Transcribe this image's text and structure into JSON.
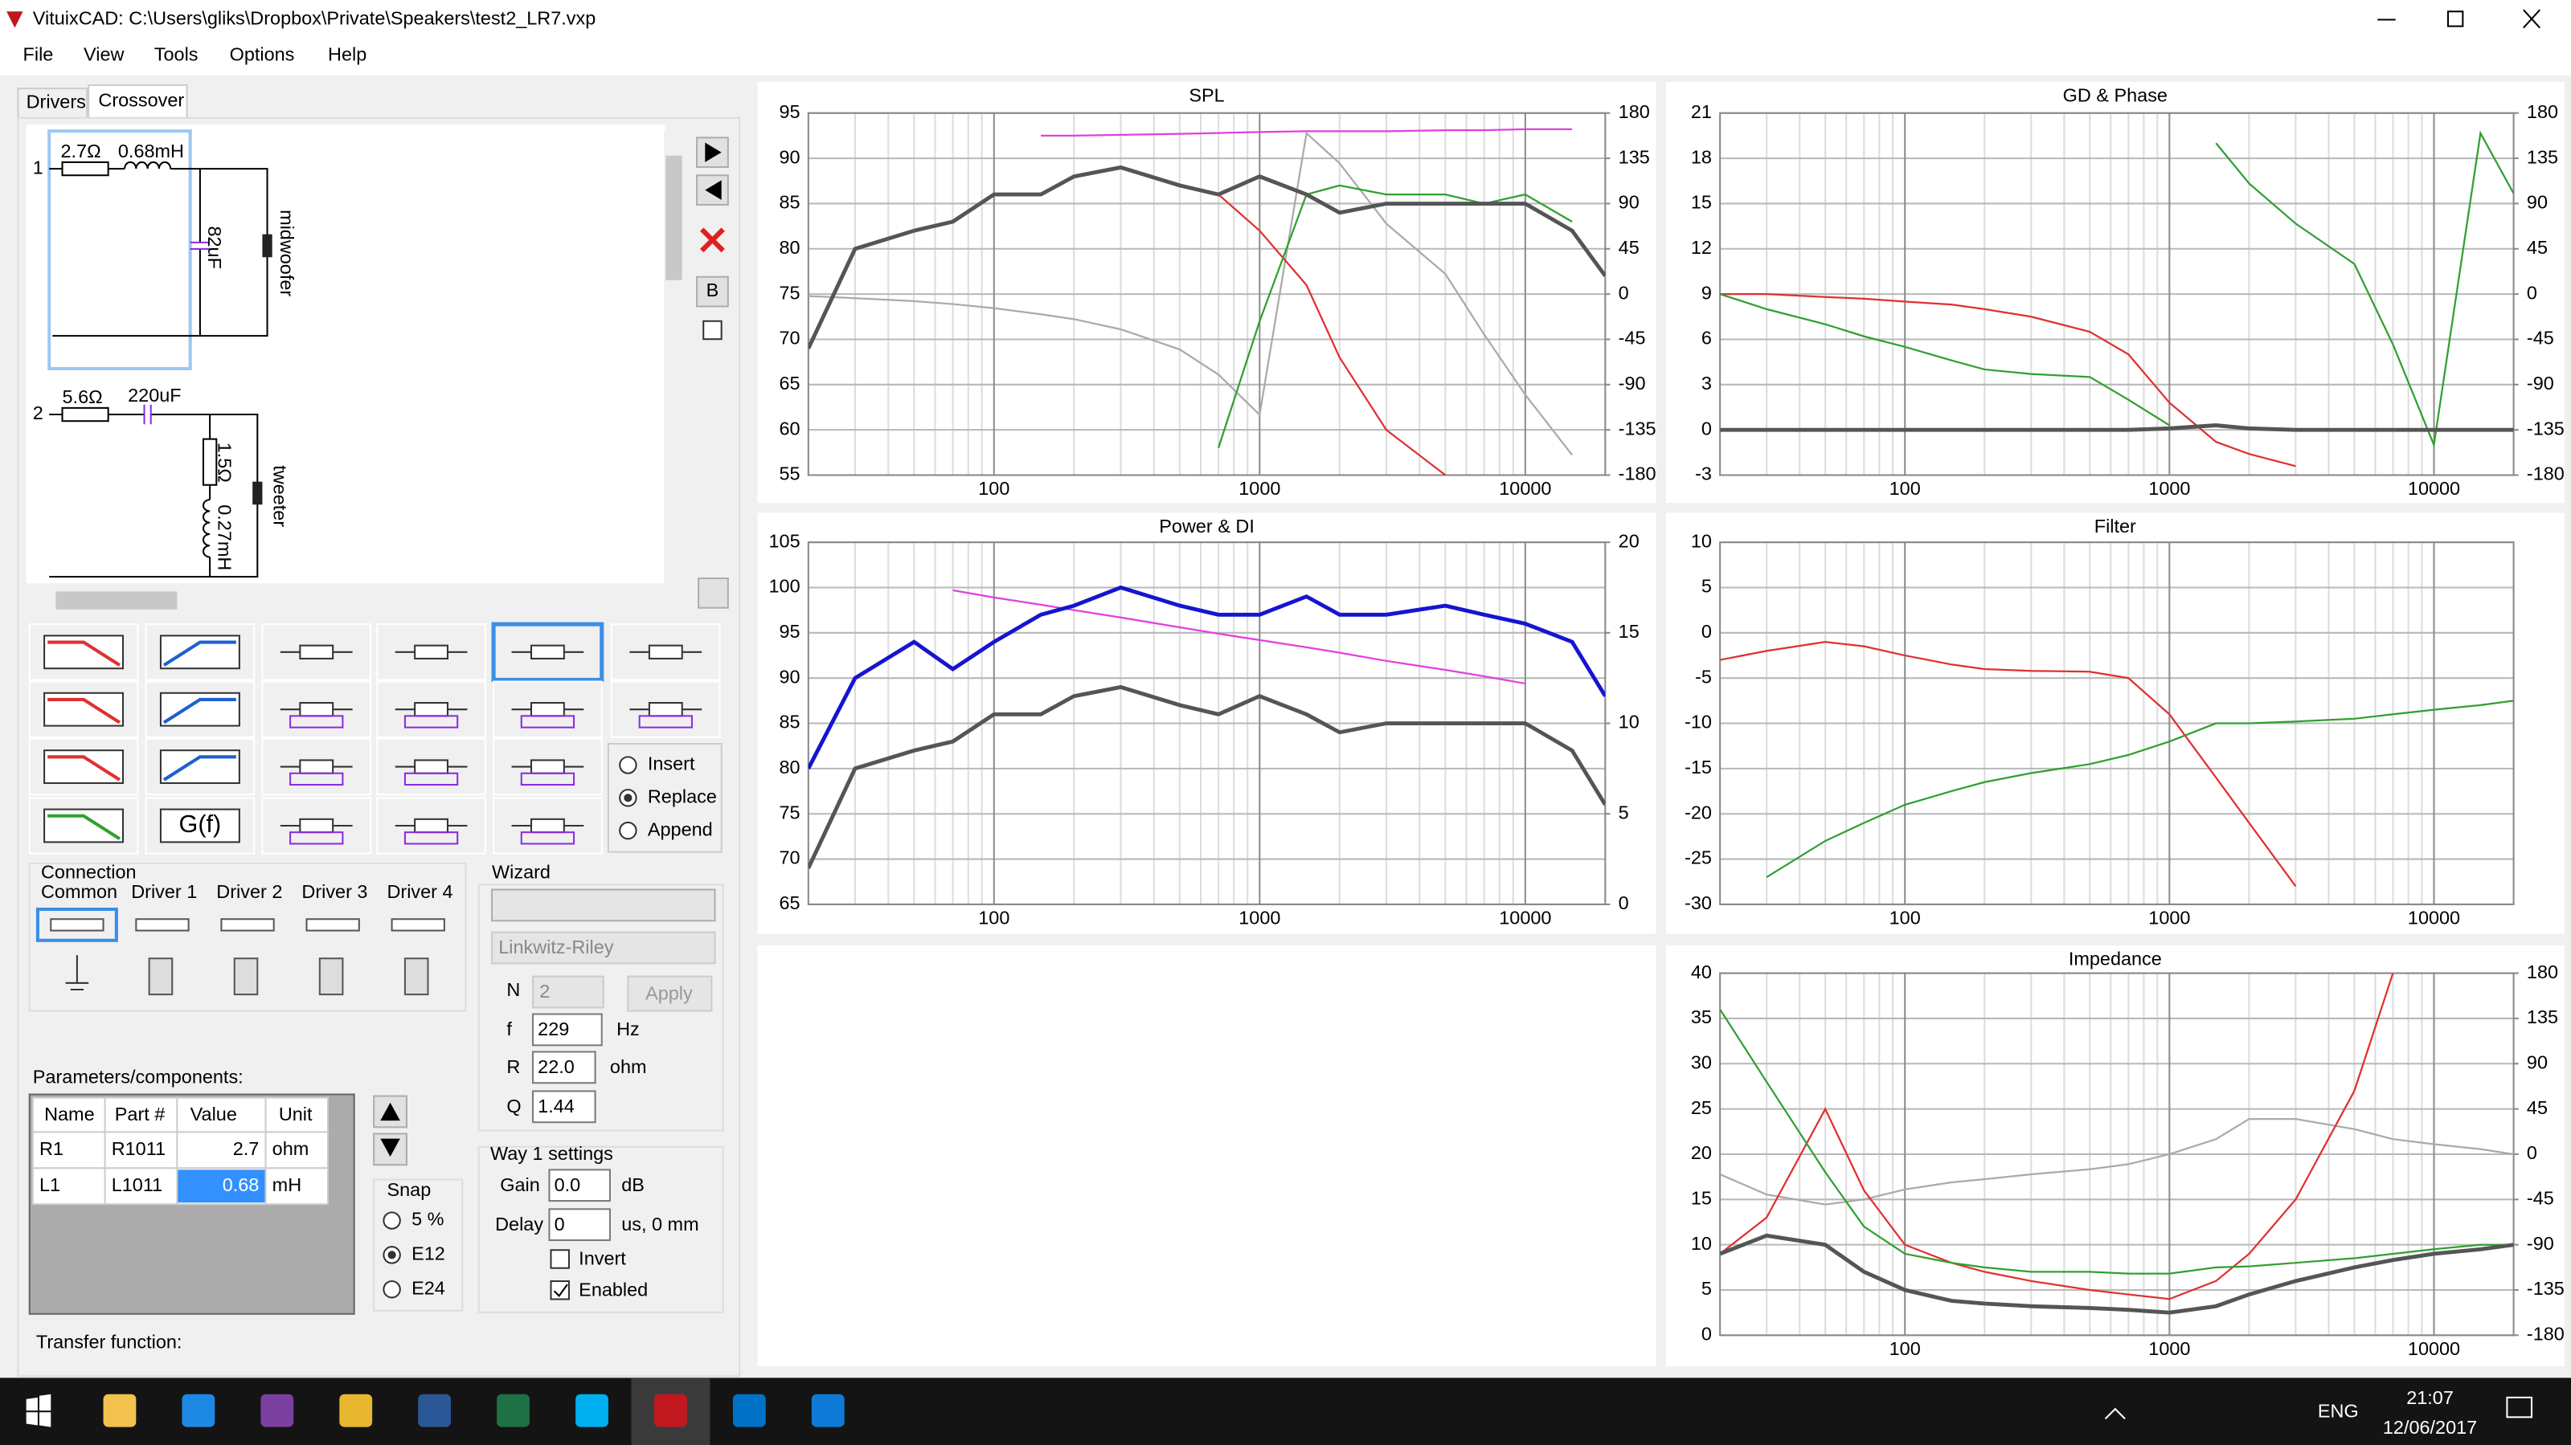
{
  "window": {
    "title": "VituixCAD: C:\\Users\\gliks\\Dropbox\\Private\\Speakers\\test2_LR7.vxp"
  },
  "menu": [
    "File",
    "View",
    "Tools",
    "Options",
    "Help"
  ],
  "tabs": [
    "Drivers",
    "Crossover"
  ],
  "schematic": {
    "way1": "1",
    "r1": "2.7Ω",
    "l1": "0.68mH",
    "c1": "82uF",
    "driver1": "midwoofer",
    "way2": "2",
    "r2": "5.6Ω",
    "c2": "220uF",
    "r3": "1.5Ω",
    "l2": "0.27mH",
    "driver2": "tweeter"
  },
  "toolbar": {
    "b": "B"
  },
  "palette": {
    "gf": "G(f)",
    "modes": [
      "Insert",
      "Replace",
      "Append"
    ]
  },
  "connection": {
    "title": "Connection",
    "columns": [
      "Common",
      "Driver 1",
      "Driver 2",
      "Driver 3",
      "Driver 4"
    ]
  },
  "wizard": {
    "title": "Wizard",
    "filter": "Linkwitz-Riley",
    "n_label": "N",
    "n": "2",
    "apply": "Apply",
    "f_label": "f",
    "f": "229",
    "f_unit": "Hz",
    "r_label": "R",
    "r": "22.0",
    "r_unit": "ohm",
    "q_label": "Q",
    "q": "1.44"
  },
  "parameters": {
    "title": "Parameters/components:",
    "columns": [
      "Name",
      "Part #",
      "Value",
      "Unit"
    ],
    "rows": [
      [
        "R1",
        "R1011",
        "2.7",
        "ohm"
      ],
      [
        "L1",
        "L1011",
        "0.68",
        "mH"
      ]
    ]
  },
  "snap": {
    "title": "Snap",
    "options": [
      "5 %",
      "E12",
      "E24"
    ]
  },
  "way_settings": {
    "title": "Way 1 settings",
    "gain_label": "Gain",
    "gain": "0.0",
    "gain_unit": "dB",
    "delay_label": "Delay",
    "delay": "0",
    "delay_unit": "us, 0 mm",
    "invert": "Invert",
    "enabled": "Enabled"
  },
  "transfer_function": "Transfer function:",
  "chart_data": [
    {
      "type": "line",
      "title": "SPL",
      "xscale": "log",
      "xlim": [
        20,
        20000
      ],
      "xticks": [
        100,
        1000,
        10000
      ],
      "xminor": [
        30,
        40,
        50,
        60,
        70,
        80,
        90,
        200,
        300,
        400,
        500,
        600,
        700,
        800,
        900,
        2000,
        3000,
        4000,
        5000,
        6000,
        7000,
        8000,
        9000
      ],
      "ylim": [
        55,
        95
      ],
      "yticks": [
        55,
        60,
        65,
        70,
        75,
        80,
        85,
        90,
        95
      ],
      "y2lim": [
        -180,
        180
      ],
      "y2ticks": [
        -180,
        -135,
        -90,
        -45,
        0,
        45,
        90,
        135,
        180
      ],
      "grid": true,
      "x": [
        20,
        30,
        50,
        70,
        100,
        150,
        200,
        300,
        500,
        700,
        1000,
        1500,
        2000,
        3000,
        5000,
        7000,
        10000,
        15000,
        20000
      ],
      "series": [
        {
          "color": "#aaaaaa",
          "axis": "y2",
          "values": [
            -2,
            -4,
            -7,
            -10,
            -14,
            -20,
            -25,
            -35,
            -55,
            -80,
            -120,
            160,
            130,
            70,
            20,
            -40,
            -100,
            -160,
            null
          ]
        },
        {
          "color": "#e040e0",
          "values": [
            null,
            null,
            null,
            null,
            null,
            92.5,
            92.5,
            92.6,
            92.7,
            92.8,
            92.9,
            93,
            93,
            93,
            93.1,
            93.1,
            93.2,
            93.2,
            null
          ]
        },
        {
          "color": "#e03030",
          "values": [
            null,
            null,
            null,
            null,
            null,
            null,
            null,
            null,
            87,
            86,
            82,
            76,
            68,
            60,
            55,
            null,
            null,
            null,
            null
          ]
        },
        {
          "color": "#30a030",
          "values": [
            null,
            null,
            null,
            null,
            null,
            null,
            null,
            null,
            null,
            58,
            72,
            86,
            87,
            86,
            86,
            85,
            86,
            83,
            null
          ]
        },
        {
          "color": "#555555",
          "values": [
            69,
            80,
            82,
            83,
            86,
            86,
            88,
            89,
            87,
            86,
            88,
            86,
            84,
            85,
            85,
            85,
            85,
            82,
            77
          ]
        }
      ]
    },
    {
      "type": "line",
      "title": "GD & Phase",
      "xscale": "log",
      "xlim": [
        20,
        20000
      ],
      "xticks": [
        100,
        1000,
        10000
      ],
      "xminor": [
        30,
        40,
        50,
        60,
        70,
        80,
        90,
        200,
        300,
        400,
        500,
        600,
        700,
        800,
        900,
        2000,
        3000,
        4000,
        5000,
        6000,
        7000,
        8000,
        9000
      ],
      "ylim": [
        -3,
        21
      ],
      "yticks": [
        -3,
        0,
        3,
        6,
        9,
        12,
        15,
        18,
        21
      ],
      "y2lim": [
        -180,
        180
      ],
      "y2ticks": [
        -180,
        -135,
        -90,
        -45,
        0,
        45,
        90,
        135,
        180
      ],
      "grid": true,
      "x": [
        20,
        30,
        50,
        70,
        100,
        150,
        200,
        300,
        500,
        700,
        1000,
        1500,
        2000,
        3000,
        5000,
        7000,
        10000,
        15000,
        20000
      ],
      "series": [
        {
          "color": "#30a030",
          "axis": "y2",
          "values": [
            null,
            null,
            null,
            null,
            null,
            null,
            null,
            null,
            null,
            null,
            null,
            150,
            110,
            70,
            30,
            -50,
            -150,
            160,
            100
          ]
        },
        {
          "color": "#e03030",
          "values": [
            9,
            9,
            8.8,
            8.7,
            8.5,
            8.3,
            8,
            7.5,
            6.5,
            5,
            1.8,
            -0.8,
            -1.6,
            -2.4,
            null,
            null,
            null,
            null,
            null
          ]
        },
        {
          "color": "#30a030",
          "values": [
            9,
            8,
            7,
            6.2,
            5.5,
            4.6,
            4,
            3.7,
            3.5,
            2,
            0.3,
            null,
            null,
            null,
            null,
            null,
            null,
            null,
            null
          ]
        },
        {
          "color": "#555555",
          "values": [
            0,
            0,
            0,
            0,
            0,
            0,
            0,
            0,
            0,
            0,
            0.1,
            0.3,
            0.1,
            0,
            0,
            0,
            0,
            0,
            0
          ]
        }
      ]
    },
    {
      "type": "line",
      "title": "Power & DI",
      "xscale": "log",
      "xlim": [
        20,
        20000
      ],
      "xticks": [
        100,
        1000,
        10000
      ],
      "xminor": [
        30,
        40,
        50,
        60,
        70,
        80,
        90,
        200,
        300,
        400,
        500,
        600,
        700,
        800,
        900,
        2000,
        3000,
        4000,
        5000,
        6000,
        7000,
        8000,
        9000
      ],
      "ylim": [
        65,
        105
      ],
      "yticks": [
        65,
        70,
        75,
        80,
        85,
        90,
        95,
        100,
        105
      ],
      "y2lim": [
        0,
        20
      ],
      "y2ticks": [
        0,
        5,
        10,
        15,
        20
      ],
      "grid": true,
      "x": [
        20,
        30,
        50,
        70,
        100,
        150,
        200,
        300,
        500,
        700,
        1000,
        1500,
        2000,
        3000,
        5000,
        7000,
        10000,
        15000,
        20000
      ],
      "series": [
        {
          "color": "#e040e0",
          "values": [
            null,
            null,
            null,
            99.7,
            98.9,
            98.1,
            97.5,
            96.7,
            95.6,
            94.9,
            94.2,
            93.4,
            92.8,
            91.9,
            90.9,
            90.2,
            89.4,
            null,
            null
          ]
        },
        {
          "color": "#555555",
          "values": [
            69,
            80,
            82,
            83,
            86,
            86,
            88,
            89,
            87,
            86,
            88,
            86,
            84,
            85,
            85,
            85,
            85,
            82,
            76
          ]
        },
        {
          "color": "#1515d0",
          "values": [
            80,
            90,
            94,
            91,
            94,
            97,
            98,
            100,
            98,
            97,
            97,
            99,
            97,
            97,
            98,
            97,
            96,
            94,
            88
          ]
        }
      ]
    },
    {
      "type": "line",
      "title": "Filter",
      "xscale": "log",
      "xlim": [
        20,
        20000
      ],
      "xticks": [
        100,
        1000,
        10000
      ],
      "xminor": [
        30,
        40,
        50,
        60,
        70,
        80,
        90,
        200,
        300,
        400,
        500,
        600,
        700,
        800,
        900,
        2000,
        3000,
        4000,
        5000,
        6000,
        7000,
        8000,
        9000
      ],
      "ylim": [
        -30,
        10
      ],
      "yticks": [
        -30,
        -25,
        -20,
        -15,
        -10,
        -5,
        0,
        5,
        10
      ],
      "grid": true,
      "x": [
        20,
        30,
        50,
        70,
        100,
        150,
        200,
        300,
        500,
        700,
        1000,
        1500,
        2000,
        3000,
        5000,
        7000,
        10000,
        15000,
        20000
      ],
      "series": [
        {
          "color": "#e03030",
          "values": [
            -3,
            -2,
            -1,
            -1.5,
            -2.5,
            -3.5,
            -4,
            -4.2,
            -4.3,
            -5,
            -9,
            -16,
            -21,
            -28,
            null,
            null,
            null,
            null,
            null
          ]
        },
        {
          "color": "#30a030",
          "values": [
            null,
            -27,
            -23,
            -21,
            -19,
            -17.5,
            -16.5,
            -15.5,
            -14.5,
            -13.5,
            -12,
            -10,
            -10,
            -9.8,
            -9.5,
            -9,
            -8.5,
            -8,
            -7.5
          ]
        }
      ]
    },
    {
      "type": "line",
      "title": "Impedance",
      "xscale": "log",
      "xlim": [
        20,
        20000
      ],
      "xticks": [
        100,
        1000,
        10000
      ],
      "xminor": [
        30,
        40,
        50,
        60,
        70,
        80,
        90,
        200,
        300,
        400,
        500,
        600,
        700,
        800,
        900,
        2000,
        3000,
        4000,
        5000,
        6000,
        7000,
        8000,
        9000
      ],
      "ylim": [
        0,
        40
      ],
      "yticks": [
        0,
        5,
        10,
        15,
        20,
        25,
        30,
        35,
        40
      ],
      "y2lim": [
        -180,
        180
      ],
      "y2ticks": [
        -180,
        -135,
        -90,
        -45,
        0,
        45,
        90,
        135,
        180
      ],
      "grid": true,
      "x": [
        20,
        30,
        50,
        70,
        100,
        150,
        200,
        300,
        500,
        700,
        1000,
        1500,
        2000,
        3000,
        5000,
        7000,
        10000,
        15000,
        20000
      ],
      "series": [
        {
          "color": "#aaaaaa",
          "axis": "y2",
          "values": [
            -20,
            -40,
            -50,
            -45,
            -35,
            -28,
            -25,
            -20,
            -15,
            -10,
            0,
            15,
            35,
            35,
            25,
            15,
            10,
            5,
            0
          ]
        },
        {
          "color": "#e03030",
          "values": [
            9,
            13,
            25,
            16,
            10,
            8,
            7,
            6,
            5,
            4.5,
            4,
            6,
            9,
            15,
            27,
            40,
            null,
            null,
            null
          ]
        },
        {
          "color": "#30a030",
          "values": [
            36,
            28,
            18,
            12,
            9,
            8,
            7.5,
            7,
            7,
            6.8,
            6.8,
            7.5,
            7.6,
            8,
            8.5,
            9,
            9.5,
            10,
            10
          ]
        },
        {
          "color": "#555555",
          "values": [
            9,
            11,
            10,
            7,
            5,
            3.8,
            3.5,
            3.2,
            3,
            2.8,
            2.5,
            3.2,
            4.5,
            6,
            7.5,
            8.3,
            9,
            9.5,
            10
          ]
        }
      ]
    }
  ],
  "taskbar": {
    "language": "ENG",
    "time": "21:07",
    "date": "12/06/2017"
  }
}
